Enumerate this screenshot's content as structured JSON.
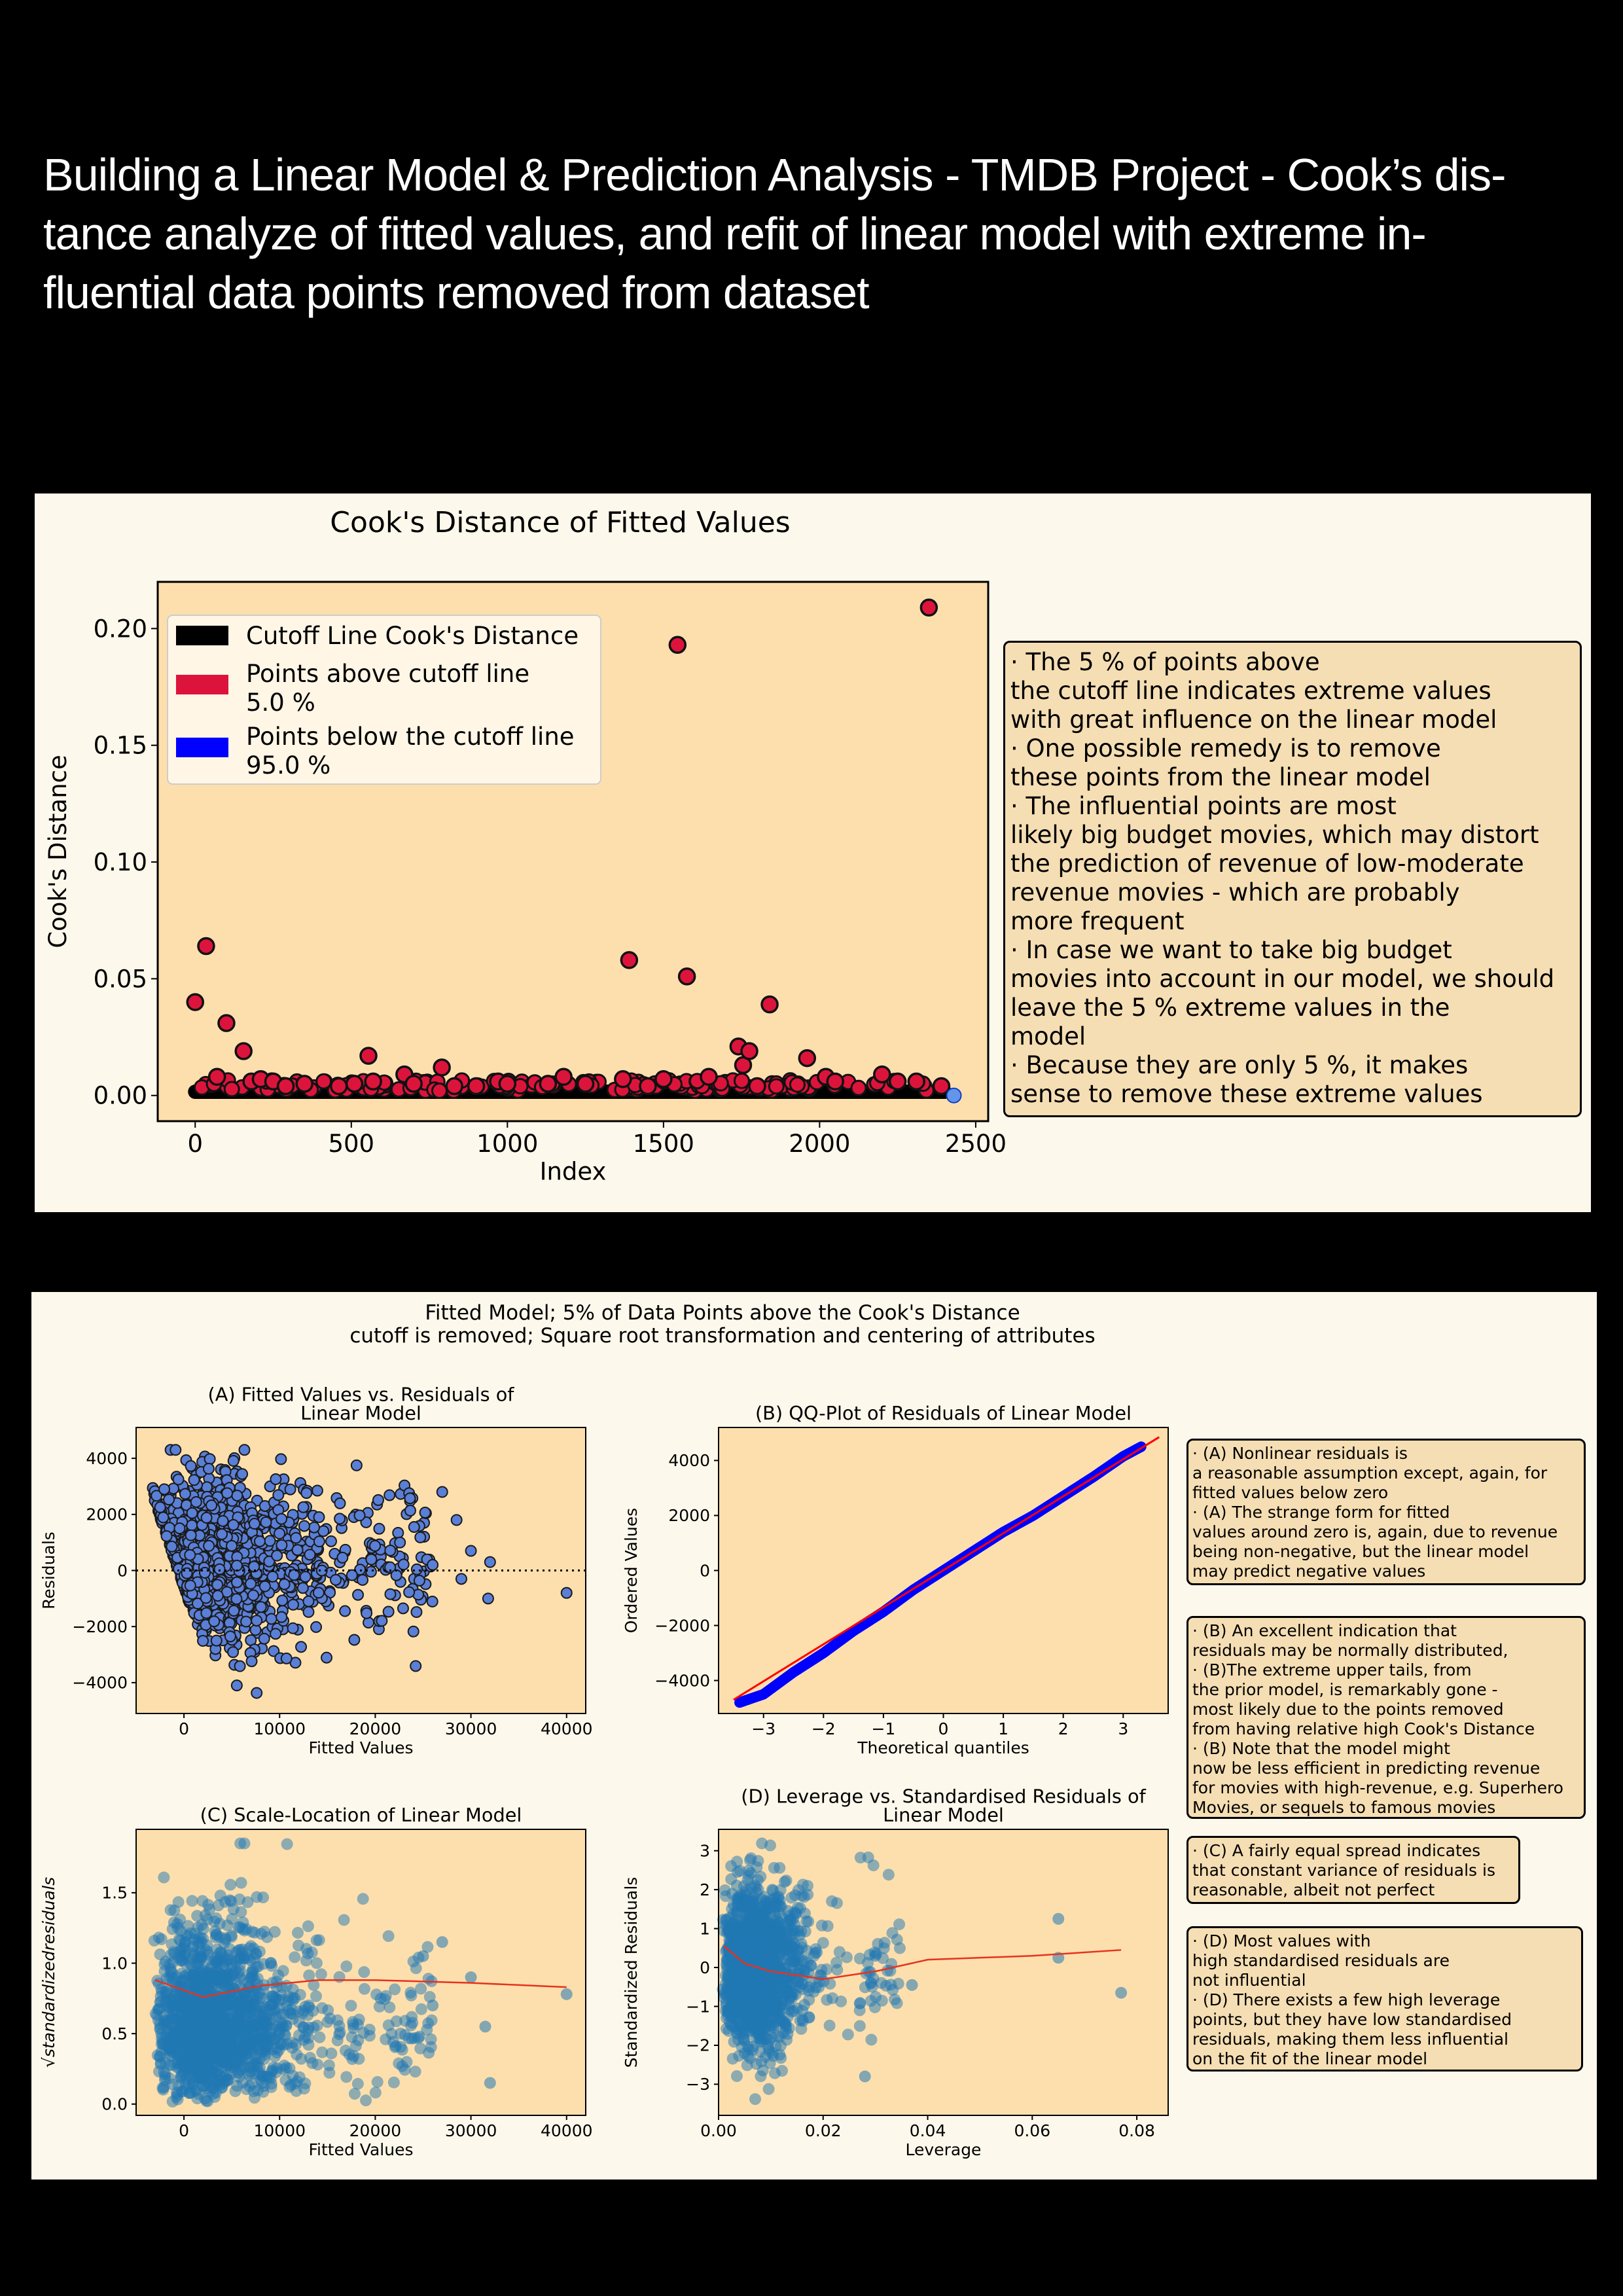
{
  "page": {
    "title_lines": [
      "Building a Linear Model & Prediction Analysis - TMDB Project - Cook’s dis-",
      "tance analyze of fitted values, and refit of linear model with extreme in-",
      "fluential data points removed from dataset"
    ]
  },
  "colors": {
    "plot_bg": "#fddfad",
    "panel_bg": "#fdf8ec",
    "note_bg": "#f5deb3",
    "above_cutoff": "#dc143c",
    "below_cutoff": "#0000ff",
    "residual_points": "#5a7fd6",
    "scale_points": "#1f77b4",
    "lowess": "#e8321e"
  },
  "cooks": {
    "note_lines": [
      "· The 5 % of points above",
      "the cutoff line indicates extreme values",
      "with great influence on the linear model",
      "· One possible remedy is to remove",
      "these points from the linear model",
      "· The influential points are most",
      "likely big budget movies, which may distort",
      "the prediction of revenue of low-moderate",
      "revenue movies - which are probably",
      "more frequent",
      "· In case we want to take big budget",
      "movies into account in our model, we should",
      "leave the 5 % extreme values in the",
      "model",
      "· Because they are only 5 %, it makes",
      "sense to remove these extreme values"
    ]
  },
  "lower": {
    "suptitle_lines": [
      "Fitted Model; 5% of Data Points above the Cook's Distance",
      "cutoff is removed; Square root transformation and centering of attributes"
    ],
    "notes": {
      "a": [
        "· (A) Nonlinear residuals is",
        "a reasonable assumption except, again, for",
        "fitted values below zero",
        "· (A) The strange form for fitted",
        "values around zero is, again, due to revenue",
        "being non-negative, but the linear model",
        "may predict negative values"
      ],
      "b": [
        "· (B) An excellent indication that",
        "residuals may be normally distributed,",
        "· (B)The extreme upper tails, from",
        "the prior model, is remarkably gone -",
        "most likely due to the points removed",
        "from having relative high Cook's Distance",
        "· (B) Note that the model might",
        "now be less efficient in predicting revenue",
        "for movies with high-revenue, e.g. Superhero",
        "Movies, or sequels to famous movies"
      ],
      "c": [
        "· (C) A fairly equal spread indicates",
        "that constant variance of residuals is",
        "reasonable, albeit not perfect"
      ],
      "d": [
        "· (D) Most values with",
        "high standardised residuals are",
        "not influential",
        "· (D) There exists a few high leverage",
        "points, but they have low standardised",
        "residuals, making them less influential",
        "on the fit of the linear model"
      ]
    }
  },
  "chart_data": [
    {
      "id": "cooks",
      "type": "scatter",
      "title": "Cook's Distance of Fitted Values",
      "xlabel": "Index",
      "ylabel": "Cook's Distance",
      "xlim": [
        -120,
        2540
      ],
      "ylim": [
        -0.011,
        0.22
      ],
      "xticks": [
        0,
        500,
        1000,
        1500,
        2000,
        2500
      ],
      "xtick_labels": [
        "0",
        "500",
        "1000",
        "1500",
        "2000",
        "2500"
      ],
      "yticks": [
        0.0,
        0.05,
        0.1,
        0.15,
        0.2
      ],
      "ytick_labels": [
        "0.00",
        "0.05",
        "0.10",
        "0.15",
        "0.20"
      ],
      "legend_position": "top-left",
      "legend": [
        {
          "label": "Cutoff Line Cook's Distance",
          "label2": "",
          "color": "#000000"
        },
        {
          "label": "Points above cutoff line",
          "label2": " 5.0 %",
          "color": "#dc143c"
        },
        {
          "label": "Points below the cutoff line",
          "label2": " 95.0 %",
          "color": "#0000ff"
        }
      ],
      "cutoff_points": {
        "x_range": [
          0,
          2400
        ],
        "y": 0.0016
      },
      "above_cutoff": {
        "x": [
          0,
          35,
          70,
          100,
          155,
          180,
          210,
          250,
          290,
          350,
          460,
          510,
          555,
          570,
          670,
          700,
          790,
          830,
          900,
          970,
          1000,
          1130,
          1180,
          1250,
          1370,
          1390,
          1450,
          1500,
          1545,
          1575,
          1645,
          1740,
          1755,
          1775,
          1800,
          1840,
          1960,
          2020,
          2050,
          2200,
          2250,
          2310,
          2350,
          2390
        ],
        "y": [
          0.04,
          0.064,
          0.008,
          0.031,
          0.019,
          0.006,
          0.007,
          0.006,
          0.004,
          0.005,
          0.004,
          0.005,
          0.017,
          0.006,
          0.009,
          0.005,
          0.012,
          0.004,
          0.004,
          0.006,
          0.005,
          0.005,
          0.008,
          0.005,
          0.007,
          0.058,
          0.004,
          0.007,
          0.193,
          0.051,
          0.008,
          0.021,
          0.013,
          0.019,
          0.004,
          0.039,
          0.016,
          0.008,
          0.006,
          0.009,
          0.006,
          0.006,
          0.209,
          0.004
        ]
      },
      "below_cutoff_last": {
        "x": [
          2430
        ],
        "y": [
          0.0
        ]
      }
    },
    {
      "id": "A",
      "type": "scatter",
      "title": "(A) Fitted Values vs. Residuals of\nLinear Model",
      "xlabel": "Fitted Values",
      "ylabel": "Residuals",
      "xlim": [
        -5000,
        42000
      ],
      "ylim": [
        -5100,
        5100
      ],
      "xticks": [
        0,
        10000,
        20000,
        30000,
        40000
      ],
      "xtick_labels": [
        "0",
        "10000",
        "20000",
        "30000",
        "40000"
      ],
      "yticks": [
        -4000,
        -2000,
        0,
        2000,
        4000
      ],
      "ytick_labels": [
        "−4000",
        "−2000",
        "0",
        "2000",
        "4000"
      ],
      "reference_line_y": 0,
      "points_description": "≈3600 points; dense wedge bounded below by residual ≈ −fitted for fitted < 8000; spread up to ±4500",
      "outliers": {
        "x": [
          40000,
          32000,
          31800,
          30000,
          29000,
          28500,
          27000,
          26000
        ],
        "y": [
          -800,
          300,
          -1000,
          700,
          -300,
          1800,
          2800,
          200
        ]
      }
    },
    {
      "id": "B",
      "type": "scatter",
      "title": "(B) QQ-Plot of Residuals of Linear Model",
      "xlabel": "Theoretical quantiles",
      "ylabel": "Ordered Values",
      "xlim": [
        -3.75,
        3.75
      ],
      "ylim": [
        -5200,
        5200
      ],
      "xticks": [
        -3,
        -2,
        -1,
        0,
        1,
        2,
        3
      ],
      "xtick_labels": [
        "−3",
        "−2",
        "−1",
        "0",
        "1",
        "2",
        "3"
      ],
      "yticks": [
        -4000,
        -2000,
        0,
        2000,
        4000
      ],
      "ytick_labels": [
        "−4000",
        "−2000",
        "0",
        "2000",
        "4000"
      ],
      "reference_line": {
        "x": [
          -3.5,
          3.6
        ],
        "y": [
          -4700,
          4850
        ]
      },
      "points_sample": {
        "x": [
          -3.4,
          -3.0,
          -2.5,
          -2.0,
          -1.5,
          -1.0,
          -0.5,
          0.0,
          0.5,
          1.0,
          1.5,
          2.0,
          2.5,
          3.0,
          3.3
        ],
        "y": [
          -4800,
          -4500,
          -3700,
          -3000,
          -2200,
          -1500,
          -700,
          0,
          700,
          1400,
          2000,
          2700,
          3400,
          4150,
          4500
        ]
      }
    },
    {
      "id": "C",
      "type": "scatter",
      "title": "(C) Scale-Location of Linear Model",
      "xlabel": "Fitted Values",
      "ylabel": "√standardizedresiduals",
      "xlim": [
        -5000,
        42000
      ],
      "ylim": [
        -0.08,
        1.95
      ],
      "xticks": [
        0,
        10000,
        20000,
        30000,
        40000
      ],
      "xtick_labels": [
        "0",
        "10000",
        "20000",
        "30000",
        "40000"
      ],
      "yticks": [
        0.0,
        0.5,
        1.0,
        1.5
      ],
      "ytick_labels": [
        "0.0",
        "0.5",
        "1.0",
        "1.5"
      ],
      "lowess": {
        "x": [
          -3000,
          2000,
          8000,
          14000,
          20000,
          30000,
          40000
        ],
        "y": [
          0.88,
          0.76,
          0.84,
          0.88,
          0.88,
          0.86,
          0.83
        ]
      },
      "outliers": {
        "x": [
          40000,
          32000,
          31500,
          30000,
          27000,
          26000,
          25000
        ],
        "y": [
          0.78,
          0.15,
          0.55,
          0.9,
          1.15,
          0.7,
          1.05
        ]
      }
    },
    {
      "id": "D",
      "type": "scatter",
      "title": "(D) Leverage vs. Standardised Residuals of\nLinear Model",
      "xlabel": "Leverage",
      "ylabel": "Standardized Residuals",
      "xlim": [
        0,
        0.086
      ],
      "ylim": [
        -3.8,
        3.55
      ],
      "xticks": [
        0.0,
        0.02,
        0.04,
        0.06,
        0.08
      ],
      "xtick_labels": [
        "0.00",
        "0.02",
        "0.04",
        "0.06",
        "0.08"
      ],
      "yticks": [
        -3,
        -2,
        -1,
        0,
        1,
        2,
        3
      ],
      "ytick_labels": [
        "−3",
        "−2",
        "−1",
        "0",
        "1",
        "2",
        "3"
      ],
      "lowess": {
        "x": [
          0.001,
          0.005,
          0.01,
          0.02,
          0.03,
          0.04,
          0.06,
          0.077
        ],
        "y": [
          0.55,
          0.1,
          -0.1,
          -0.3,
          -0.1,
          0.2,
          0.3,
          0.45
        ]
      },
      "outliers": {
        "x": [
          0.065,
          0.065,
          0.077,
          0.037,
          0.028,
          0.03
        ],
        "y": [
          1.25,
          0.25,
          -0.65,
          -0.45,
          -2.8,
          0.3
        ]
      }
    }
  ]
}
